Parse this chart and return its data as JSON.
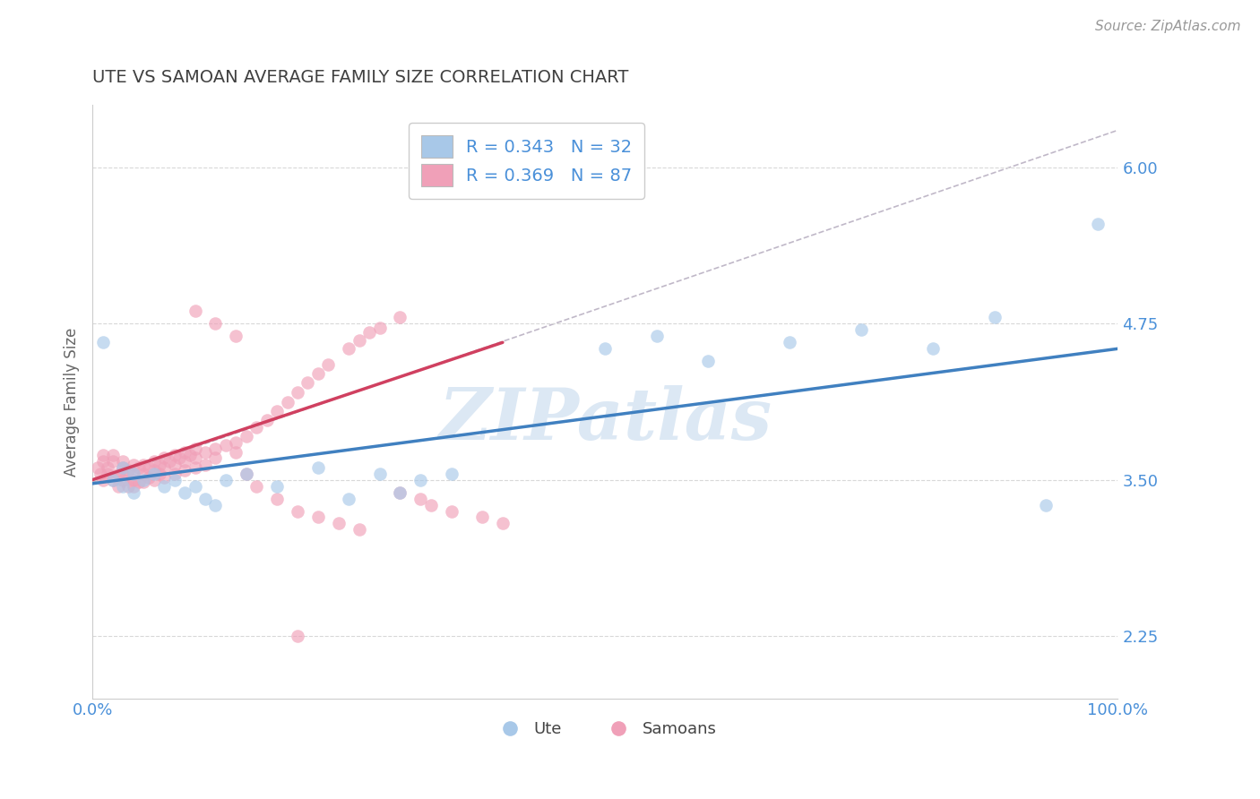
{
  "title": "UTE VS SAMOAN AVERAGE FAMILY SIZE CORRELATION CHART",
  "source_text": "Source: ZipAtlas.com",
  "ylabel": "Average Family Size",
  "xlim": [
    0.0,
    1.0
  ],
  "ylim": [
    1.75,
    6.5
  ],
  "yticks": [
    2.25,
    3.5,
    4.75,
    6.0
  ],
  "xticklabels": [
    "0.0%",
    "100.0%"
  ],
  "legend_r_ute": "R = 0.343",
  "legend_n_ute": "N = 32",
  "legend_r_samoan": "R = 0.369",
  "legend_n_samoan": "N = 87",
  "ute_color": "#a8c8e8",
  "samoan_color": "#f0a0b8",
  "trend_ute_color": "#4080c0",
  "trend_samoan_color": "#d04060",
  "ref_line_color": "#c0b8c8",
  "grid_color": "#d8d8d8",
  "title_color": "#404040",
  "tick_color": "#4a90d9",
  "watermark_color": "#dce8f4",
  "ute_x": [
    0.01,
    0.02,
    0.03,
    0.03,
    0.04,
    0.04,
    0.05,
    0.06,
    0.07,
    0.08,
    0.09,
    0.1,
    0.11,
    0.12,
    0.13,
    0.15,
    0.18,
    0.22,
    0.25,
    0.28,
    0.3,
    0.32,
    0.35,
    0.5,
    0.55,
    0.6,
    0.68,
    0.75,
    0.82,
    0.88,
    0.93,
    0.98
  ],
  "ute_y": [
    4.6,
    3.5,
    3.6,
    3.45,
    3.55,
    3.4,
    3.5,
    3.55,
    3.45,
    3.5,
    3.4,
    3.45,
    3.35,
    3.3,
    3.5,
    3.55,
    3.45,
    3.6,
    3.35,
    3.55,
    3.4,
    3.5,
    3.55,
    4.55,
    4.65,
    4.45,
    4.6,
    4.7,
    4.55,
    4.8,
    3.3,
    5.55
  ],
  "samoan_x": [
    0.005,
    0.008,
    0.01,
    0.01,
    0.01,
    0.015,
    0.015,
    0.02,
    0.02,
    0.02,
    0.025,
    0.025,
    0.03,
    0.03,
    0.03,
    0.03,
    0.035,
    0.035,
    0.04,
    0.04,
    0.04,
    0.04,
    0.045,
    0.045,
    0.05,
    0.05,
    0.05,
    0.055,
    0.055,
    0.06,
    0.06,
    0.06,
    0.065,
    0.065,
    0.07,
    0.07,
    0.07,
    0.075,
    0.08,
    0.08,
    0.08,
    0.085,
    0.09,
    0.09,
    0.09,
    0.095,
    0.1,
    0.1,
    0.1,
    0.11,
    0.11,
    0.12,
    0.12,
    0.13,
    0.14,
    0.14,
    0.15,
    0.16,
    0.17,
    0.18,
    0.19,
    0.2,
    0.21,
    0.22,
    0.23,
    0.25,
    0.26,
    0.27,
    0.28,
    0.3,
    0.3,
    0.32,
    0.33,
    0.35,
    0.38,
    0.4,
    0.15,
    0.16,
    0.18,
    0.2,
    0.22,
    0.24,
    0.26,
    0.1,
    0.12,
    0.14,
    0.2
  ],
  "samoan_y": [
    3.6,
    3.55,
    3.65,
    3.7,
    3.5,
    3.6,
    3.55,
    3.65,
    3.7,
    3.5,
    3.55,
    3.45,
    3.6,
    3.55,
    3.65,
    3.5,
    3.58,
    3.45,
    3.62,
    3.5,
    3.45,
    3.55,
    3.6,
    3.48,
    3.62,
    3.55,
    3.48,
    3.6,
    3.52,
    3.65,
    3.58,
    3.5,
    3.62,
    3.55,
    3.68,
    3.6,
    3.52,
    3.65,
    3.7,
    3.62,
    3.55,
    3.68,
    3.72,
    3.65,
    3.58,
    3.7,
    3.75,
    3.68,
    3.6,
    3.72,
    3.62,
    3.75,
    3.68,
    3.78,
    3.8,
    3.72,
    3.85,
    3.92,
    3.98,
    4.05,
    4.12,
    4.2,
    4.28,
    4.35,
    4.42,
    4.55,
    4.62,
    4.68,
    4.72,
    4.8,
    3.4,
    3.35,
    3.3,
    3.25,
    3.2,
    3.15,
    3.55,
    3.45,
    3.35,
    3.25,
    3.2,
    3.15,
    3.1,
    4.85,
    4.75,
    4.65,
    2.25
  ],
  "trend_ute_x0": 0.0,
  "trend_ute_y0": 3.47,
  "trend_ute_x1": 1.0,
  "trend_ute_y1": 4.55,
  "trend_samoan_x0": 0.0,
  "trend_samoan_y0": 3.5,
  "trend_samoan_x1": 0.4,
  "trend_samoan_y1": 4.6,
  "ref_line_x0": 0.0,
  "ref_line_y0": 3.48,
  "ref_line_x1": 1.0,
  "ref_line_y1": 6.3
}
